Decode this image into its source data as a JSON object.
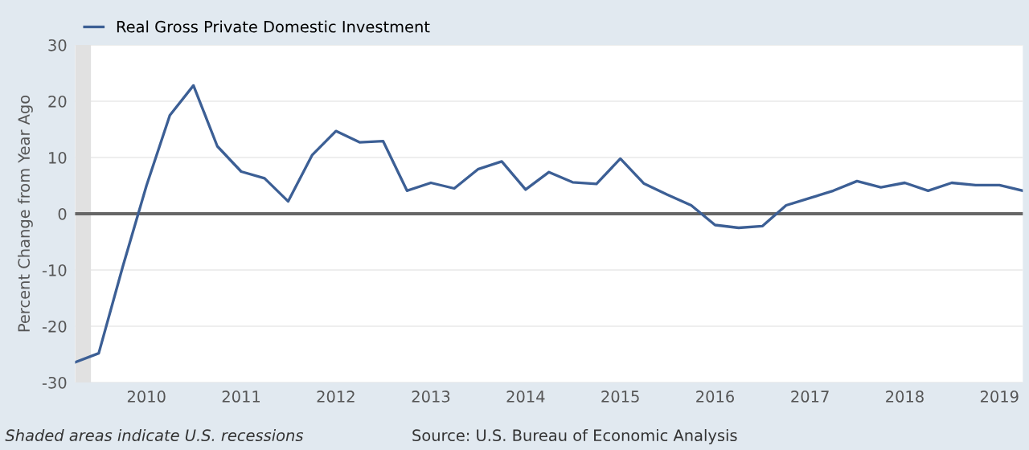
{
  "chart_data": {
    "type": "line",
    "ylabel": "Percent Change from Year Ago",
    "x": [
      "2009-04-01",
      "2009-07-01",
      "2009-10-01",
      "2010-01-01",
      "2010-04-01",
      "2010-07-01",
      "2010-10-01",
      "2011-01-01",
      "2011-04-01",
      "2011-07-01",
      "2011-10-01",
      "2012-01-01",
      "2012-04-01",
      "2012-07-01",
      "2012-10-01",
      "2013-01-01",
      "2013-04-01",
      "2013-07-01",
      "2013-10-01",
      "2014-01-01",
      "2014-04-01",
      "2014-07-01",
      "2014-10-01",
      "2015-01-01",
      "2015-04-01",
      "2015-07-01",
      "2015-10-01",
      "2016-01-01",
      "2016-04-01",
      "2016-07-01",
      "2016-10-01",
      "2017-01-01",
      "2017-04-01",
      "2017-07-01",
      "2017-10-01",
      "2018-01-01",
      "2018-04-01",
      "2018-07-01",
      "2018-10-01",
      "2019-01-01",
      "2019-04-01"
    ],
    "series": [
      {
        "name": "Real Gross Private Domestic Investment",
        "color": "#3c5f95",
        "values": [
          -26.4,
          -24.8,
          -9.5,
          5,
          17.5,
          22.8,
          12,
          7.5,
          6.3,
          2.2,
          10.4,
          14.7,
          12.7,
          12.9,
          4.1,
          5.5,
          4.5,
          7.9,
          9.3,
          4.3,
          7.4,
          5.6,
          5.3,
          9.8,
          5.4,
          3.4,
          1.5,
          -2,
          -2.5,
          -2.2,
          1.5,
          2.8,
          4.1,
          5.8,
          4.7,
          5.5,
          4.1,
          5.5,
          5.1,
          5.1,
          4.1
        ]
      }
    ],
    "xlim": [
      "2009-04-01",
      "2019-04-01"
    ],
    "xticks": [
      "2010",
      "2011",
      "2012",
      "2013",
      "2014",
      "2015",
      "2016",
      "2017",
      "2018",
      "2019"
    ],
    "ylim": [
      -30,
      30
    ],
    "yticks": [
      -30,
      -20,
      -10,
      0,
      10,
      20,
      30
    ],
    "grid": "y",
    "legend": "top left",
    "line_style": "solid",
    "marker": "none",
    "ref_lines": [
      {
        "axis": "y",
        "value": 0,
        "color": "#666666"
      }
    ],
    "bands": [
      {
        "axis": "x",
        "from": "2009-04-01",
        "to": "2009-06-01",
        "color": "#e1e1e1"
      }
    ],
    "annotations": [
      "Shaded areas indicate U.S. recessions",
      "Source: U.S. Bureau of Economic Analysis"
    ]
  }
}
